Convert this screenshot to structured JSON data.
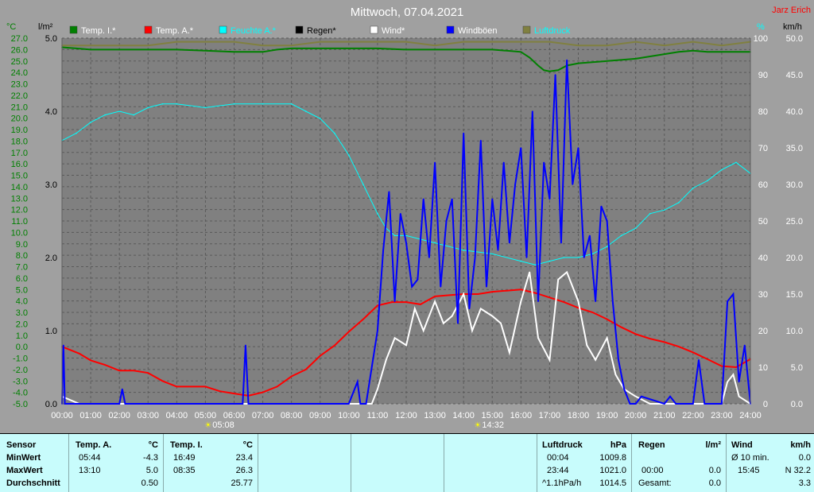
{
  "title": "Mittwoch, 07.04.2021",
  "author": "Jarz Erich",
  "colors": {
    "plot_bg": "#808080",
    "frame_bg": "#a0a0a0",
    "temp_i": "#008000",
    "temp_a": "#ff0000",
    "humidity": "#00ffff",
    "rain": "#000000",
    "wind": "#ffffff",
    "gusts": "#0000ff",
    "pressure": "#808040",
    "left_axis_text": "#008000",
    "right_axis_text": "#ffffff"
  },
  "legend": [
    {
      "label": "Temp. I.*",
      "color": "#008000",
      "text_color": "#ffffff"
    },
    {
      "label": "Temp. A.*",
      "color": "#ff0000",
      "text_color": "#ffffff"
    },
    {
      "label": "Feuchte A.*",
      "color": "#00ffff",
      "text_color": "#00ffff"
    },
    {
      "label": "Regen*",
      "color": "#000000",
      "text_color": "#000000"
    },
    {
      "label": "Wind*",
      "color": "#ffffff",
      "text_color": "#ffffff"
    },
    {
      "label": "Windböen",
      "color": "#0000ff",
      "text_color": "#ffffff"
    },
    {
      "label": "Luftdruck",
      "color": "#808040",
      "text_color": "#00ffff"
    }
  ],
  "axes": {
    "temp_unit": "°C",
    "rain_unit": "l/m²",
    "humidity_unit": "%",
    "wind_unit": "km/h",
    "temp_ticks": [
      "27.0",
      "26.0",
      "25.0",
      "24.0",
      "23.0",
      "22.0",
      "21.0",
      "20.0",
      "19.0",
      "18.0",
      "17.0",
      "16.0",
      "15.0",
      "14.0",
      "13.0",
      "12.0",
      "11.0",
      "10.0",
      "9.0",
      "8.0",
      "7.0",
      "6.0",
      "5.0",
      "4.0",
      "3.0",
      "2.0",
      "1.0",
      "0.0",
      "-1.0",
      "-2.0",
      "-3.0",
      "-4.0",
      "-5.0"
    ],
    "rain_ticks": [
      "5.0",
      "4.0",
      "3.0",
      "2.0",
      "1.0",
      "0.0"
    ],
    "humidity_ticks": [
      "100",
      "90",
      "80",
      "70",
      "60",
      "50",
      "40",
      "30",
      "20",
      "10",
      "0"
    ],
    "wind_ticks": [
      "50.0",
      "45.0",
      "40.0",
      "35.0",
      "30.0",
      "25.0",
      "20.0",
      "15.0",
      "10.0",
      "5.0",
      "0.0"
    ],
    "time_ticks": [
      "00:00",
      "01:00",
      "02:00",
      "03:00",
      "04:00",
      "05:00",
      "06:00",
      "07:00",
      "08:00",
      "09:00",
      "10:00",
      "11:00",
      "12:00",
      "13:00",
      "14:00",
      "15:00",
      "16:00",
      "17:00",
      "18:00",
      "19:00",
      "20:00",
      "21:00",
      "22:00",
      "23:00",
      "24:00"
    ],
    "sunrise": "05:08",
    "sunset": "14:32"
  },
  "chart_data": {
    "type": "line",
    "x_range": [
      "00:00",
      "24:00"
    ],
    "temp_range": [
      -5,
      27
    ],
    "rain_range": [
      0,
      5
    ],
    "humidity_range": [
      0,
      100
    ],
    "wind_range": [
      0,
      50
    ],
    "grid": true,
    "series": [
      {
        "name": "Temp. I.*",
        "axis": "temp",
        "color": "#008000",
        "x": [
          0,
          0.5,
          1,
          2,
          3,
          4,
          5,
          6,
          7,
          7.5,
          8,
          9,
          10,
          11,
          12,
          13,
          14,
          15,
          15.5,
          16,
          16.3,
          16.6,
          16.8,
          17,
          17.3,
          17.6,
          18,
          19,
          20,
          21,
          21.5,
          22,
          22.5,
          23,
          23.5,
          24
        ],
        "y": [
          26.2,
          26.1,
          26.0,
          26.0,
          26.0,
          26.0,
          25.9,
          25.8,
          25.8,
          26.0,
          26.1,
          26.1,
          26.1,
          26.1,
          26.0,
          26.0,
          26.0,
          26.0,
          25.9,
          25.8,
          25.3,
          24.6,
          24.2,
          24.1,
          24.2,
          24.6,
          24.8,
          25.0,
          25.2,
          25.6,
          25.8,
          25.9,
          25.8,
          25.8,
          25.8,
          25.8
        ]
      },
      {
        "name": "Temp. A.*",
        "axis": "temp",
        "color": "#ff0000",
        "x": [
          0,
          0.3,
          0.6,
          1,
          1.5,
          2,
          2.5,
          3,
          3.5,
          4,
          4.5,
          5,
          5.5,
          6,
          6.5,
          7,
          7.5,
          8,
          8.5,
          9,
          9.5,
          10,
          10.5,
          11,
          11.5,
          12,
          12.5,
          13,
          13.5,
          14,
          14.5,
          15,
          15.5,
          16,
          16.5,
          17,
          17.5,
          18,
          18.5,
          19,
          19.5,
          20,
          20.5,
          21,
          21.5,
          22,
          22.5,
          23,
          23.5,
          24
        ],
        "y": [
          0.0,
          -0.3,
          -0.6,
          -1.2,
          -1.6,
          -2.1,
          -2.1,
          -2.3,
          -3.0,
          -3.5,
          -3.5,
          -3.5,
          -3.9,
          -4.1,
          -4.3,
          -4.0,
          -3.5,
          -2.6,
          -2.0,
          -0.8,
          0.1,
          1.3,
          2.4,
          3.6,
          3.9,
          3.9,
          3.7,
          4.4,
          4.5,
          4.6,
          4.6,
          4.8,
          4.9,
          5.0,
          4.7,
          4.3,
          3.9,
          3.4,
          3.0,
          2.4,
          1.7,
          1.1,
          0.7,
          0.4,
          0.0,
          -0.5,
          -1.1,
          -1.7,
          -1.8,
          -1.1
        ]
      },
      {
        "name": "Feuchte A.*",
        "axis": "humidity",
        "color": "#00ffff",
        "x": [
          0,
          0.5,
          1,
          1.5,
          2,
          2.5,
          3,
          3.5,
          4,
          5,
          6,
          7,
          8,
          8.5,
          9,
          9.5,
          10,
          10.5,
          11,
          11.3,
          11.6,
          12,
          13,
          14,
          15,
          16,
          16.5,
          17,
          17.5,
          18,
          18.5,
          19,
          19.5,
          20,
          20.5,
          21,
          21.5,
          22,
          22.5,
          23,
          23.5,
          24
        ],
        "y": [
          72,
          74,
          77,
          79,
          80,
          79,
          81,
          82,
          82,
          81,
          82,
          82,
          82,
          80,
          78,
          74,
          68,
          60,
          52,
          48,
          46,
          46,
          44,
          42,
          41,
          39,
          38,
          39,
          40,
          40,
          41,
          43,
          46,
          48,
          52,
          53,
          55,
          59,
          61,
          64,
          66,
          63
        ]
      },
      {
        "name": "Wind*",
        "axis": "wind",
        "color": "#ffffff",
        "x": [
          0,
          0.3,
          0.6,
          1,
          5,
          10,
          10.8,
          11,
          11.3,
          11.6,
          12,
          12.3,
          12.6,
          13,
          13.3,
          13.6,
          14,
          14.3,
          14.6,
          15,
          15.3,
          15.6,
          16,
          16.3,
          16.6,
          17,
          17.3,
          17.6,
          18,
          18.3,
          18.6,
          19,
          19.3,
          19.6,
          20,
          20.5,
          21,
          22,
          23,
          23.2,
          23.4,
          23.6,
          24
        ],
        "y": [
          1,
          0.5,
          0,
          0,
          0,
          0,
          0,
          2,
          6,
          9,
          8,
          13,
          10,
          14,
          11,
          12,
          15,
          10,
          13,
          12,
          11,
          7,
          14,
          18,
          9,
          6,
          17,
          18,
          14,
          8,
          6,
          9,
          4,
          2,
          1,
          0,
          0,
          0,
          0,
          3,
          4,
          1,
          0
        ]
      },
      {
        "name": "Windböen",
        "axis": "wind",
        "color": "#0000ff",
        "x": [
          0,
          0.05,
          0.1,
          2,
          2.1,
          2.2,
          6,
          6.3,
          6.4,
          6.5,
          10,
          10.3,
          10.4,
          10.6,
          11,
          11.2,
          11.4,
          11.6,
          11.8,
          12,
          12.2,
          12.4,
          12.6,
          12.8,
          13,
          13.2,
          13.4,
          13.6,
          13.8,
          14,
          14.2,
          14.4,
          14.6,
          14.8,
          15,
          15.2,
          15.4,
          15.6,
          15.8,
          16,
          16.2,
          16.4,
          16.6,
          16.8,
          17,
          17.2,
          17.4,
          17.6,
          17.8,
          18,
          18.2,
          18.4,
          18.6,
          18.8,
          19,
          19.2,
          19.4,
          19.6,
          19.8,
          20,
          20.2,
          21,
          21.2,
          21.4,
          22,
          22.2,
          22.4,
          23,
          23.2,
          23.4,
          23.6,
          23.8,
          24
        ],
        "y": [
          0,
          8,
          0,
          0,
          2,
          0,
          0,
          0,
          8,
          0,
          0,
          3,
          0,
          0,
          10,
          21,
          29,
          14,
          26,
          22,
          16,
          17,
          28,
          20,
          33,
          16,
          25,
          28,
          11,
          37,
          13,
          20,
          36,
          16,
          28,
          21,
          33,
          22,
          30,
          35,
          20,
          40,
          14,
          33,
          28,
          45,
          22,
          47,
          30,
          35,
          20,
          23,
          14,
          27,
          25,
          14,
          6,
          2,
          0,
          0,
          1,
          0,
          1,
          0,
          0,
          6,
          0,
          0,
          14,
          15,
          3,
          8,
          0
        ]
      },
      {
        "name": "Luftdruck",
        "axis": "humidity",
        "color": "#808040",
        "x": [
          0,
          1,
          2,
          3,
          4,
          5,
          6,
          7,
          8,
          9,
          10,
          11,
          12,
          13,
          14,
          15,
          16,
          17,
          18,
          19,
          20,
          21,
          22,
          23,
          24
        ],
        "y": [
          98,
          98,
          98,
          98,
          99,
          99,
          99,
          98,
          98,
          99,
          99,
          99,
          99,
          98,
          99,
          99,
          99,
          99,
          98,
          98,
          99,
          98,
          99,
          98,
          99
        ]
      },
      {
        "name": "Regen*",
        "axis": "rain",
        "color": "#000000",
        "x": [
          0,
          24
        ],
        "y": [
          0,
          0
        ]
      }
    ],
    "stats": {
      "sensor_label": "Sensor",
      "row_labels": [
        "MinWert",
        "MaxWert",
        "Durchschnitt"
      ],
      "temp_a": {
        "header": "Temp. A.",
        "unit": "°C",
        "times": [
          "05:44",
          "13:10",
          ""
        ],
        "values": [
          "-4.3",
          "5.0",
          "0.50"
        ]
      },
      "temp_i": {
        "header": "Temp. I.",
        "unit": "°C",
        "times": [
          "16:49",
          "08:35",
          ""
        ],
        "values": [
          "23.4",
          "26.3",
          "25.77"
        ]
      },
      "pressure": {
        "header": "Luftdruck",
        "unit": "hPa",
        "times": [
          "00:04",
          "23:44",
          "^1.1hPa/h"
        ],
        "values": [
          "1009.8",
          "1021.0",
          "1014.5"
        ]
      },
      "rain": {
        "header": "Regen",
        "unit": "l/m²",
        "times": [
          "",
          "00:00",
          "Gesamt:"
        ],
        "values": [
          "",
          "0.0",
          "0.0"
        ]
      },
      "wind": {
        "header": "Wind",
        "unit": "km/h",
        "times": [
          "Ø 10 min.",
          "15:45",
          ""
        ],
        "values": [
          "0.0",
          "N 32.2",
          "3.3"
        ]
      }
    }
  }
}
